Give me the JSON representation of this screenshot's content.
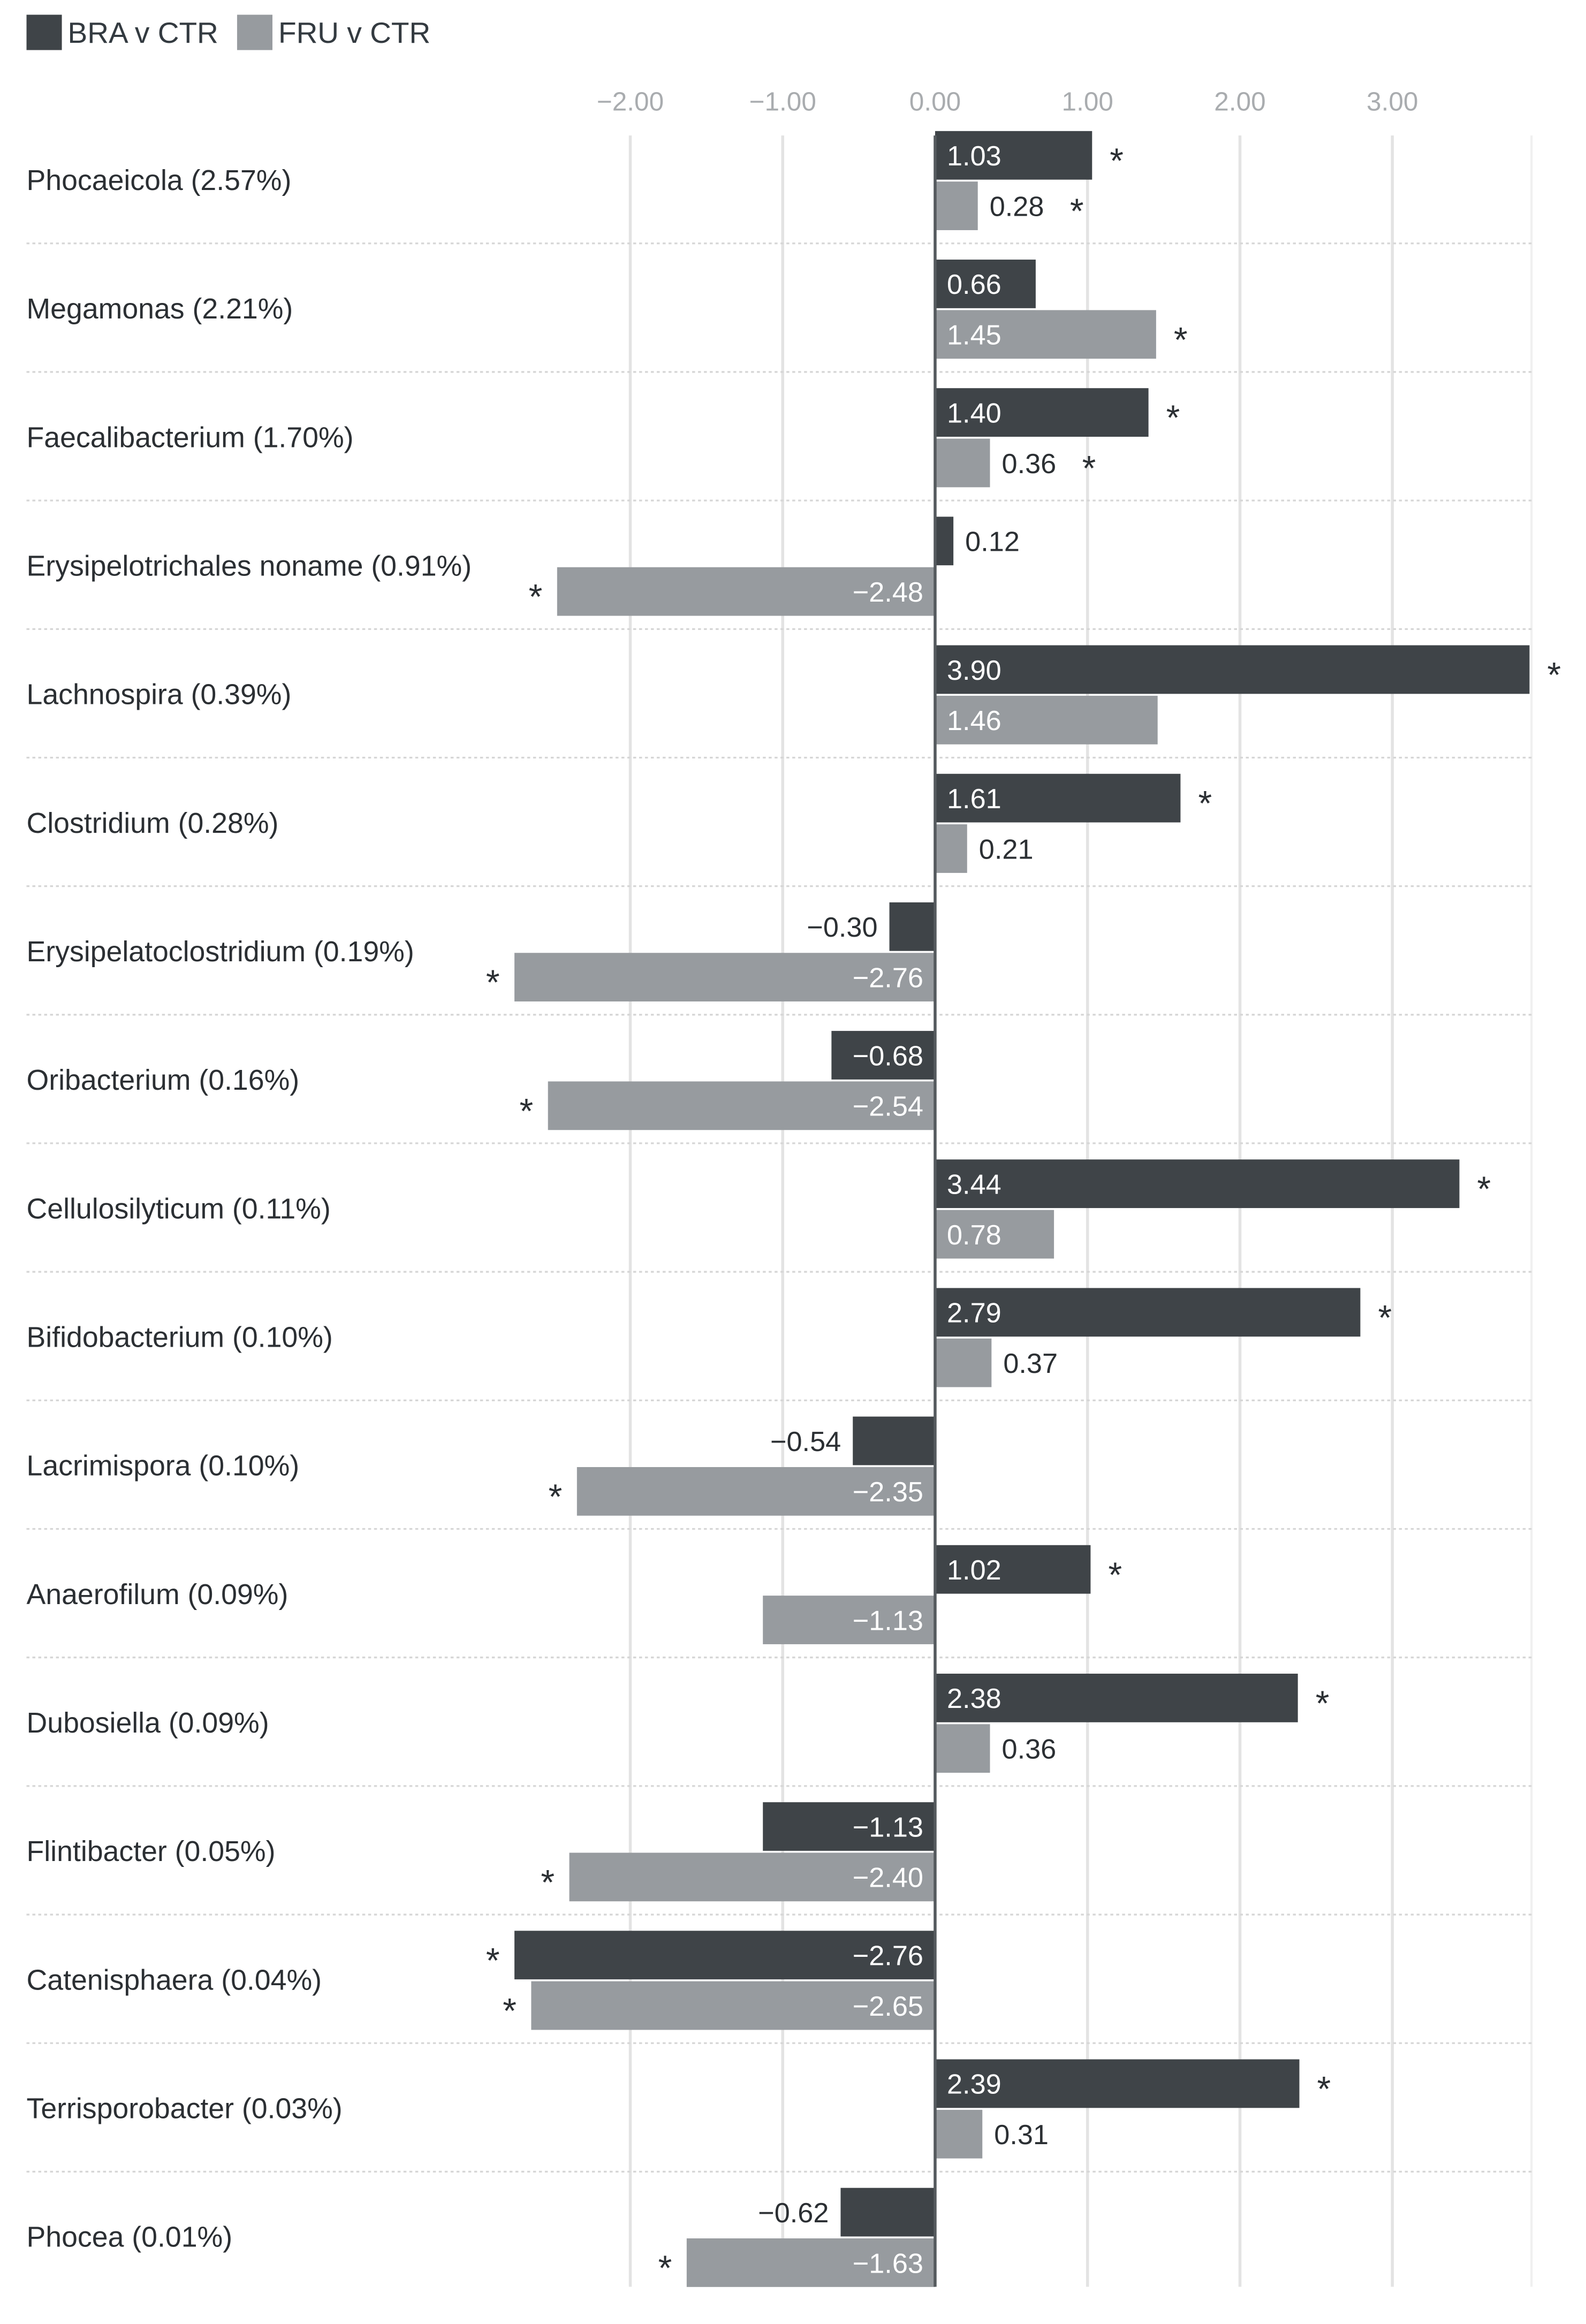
{
  "chart_data": {
    "type": "bar",
    "orientation": "horizontal",
    "legend": {
      "placement": "top-left",
      "items": [
        {
          "name": "BRA v CTR",
          "color": "#3f4448"
        },
        {
          "name": "FRU v CTR",
          "color": "#979b9f"
        }
      ]
    },
    "x_ticks": [
      "−2.00",
      "−1.00",
      "0.00",
      "1.00",
      "2.00",
      "3.00"
    ],
    "x_tick_values": [
      -2,
      -1,
      0,
      1,
      2,
      3
    ],
    "xlim": [
      -2.45,
      3.95
    ],
    "grid": true,
    "significance_marker": "*",
    "categories": [
      "Phocaeicola (2.57%)",
      "Megamonas (2.21%)",
      "Faecalibacterium (1.70%)",
      "Erysipelotrichales noname (0.91%)",
      "Lachnospira (0.39%)",
      "Clostridium (0.28%)",
      "Erysipelatoclostridium (0.19%)",
      "Oribacterium (0.16%)",
      "Cellulosilyticum (0.11%)",
      "Bifidobacterium (0.10%)",
      "Lacrimispora (0.10%)",
      "Anaerofilum (0.09%)",
      "Dubosiella (0.09%)",
      "Flintibacter (0.05%)",
      "Catenisphaera (0.04%)",
      "Terrisporobacter (0.03%)",
      "Phocea (0.01%)"
    ],
    "series": [
      {
        "name": "BRA v CTR",
        "color": "#3f4448",
        "values": [
          1.03,
          0.66,
          1.4,
          0.12,
          3.9,
          1.61,
          -0.3,
          -0.68,
          3.44,
          2.79,
          -0.54,
          1.02,
          2.38,
          -1.13,
          -2.76,
          2.39,
          -0.62
        ],
        "labels": [
          "1.03",
          "0.66",
          "1.40",
          "0.12",
          "3.90",
          "1.61",
          "−0.30",
          "−0.68",
          "3.44",
          "2.79",
          "−0.54",
          "1.02",
          "2.38",
          "−1.13",
          "−2.76",
          "2.39",
          "−0.62"
        ],
        "significant": [
          true,
          false,
          true,
          false,
          true,
          true,
          false,
          false,
          true,
          true,
          false,
          true,
          true,
          false,
          true,
          true,
          false
        ]
      },
      {
        "name": "FRU v CTR",
        "color": "#979b9f",
        "values": [
          0.28,
          1.45,
          0.36,
          -2.48,
          1.46,
          0.21,
          -2.76,
          -2.54,
          0.78,
          0.37,
          -2.35,
          -1.13,
          0.36,
          -2.4,
          -2.65,
          0.31,
          -1.63
        ],
        "labels": [
          "0.28",
          "1.45",
          "0.36",
          "−2.48",
          "1.46",
          "0.21",
          "−2.76",
          "−2.54",
          "0.78",
          "0.37",
          "−2.35",
          "−1.13",
          "0.36",
          "−2.40",
          "−2.65",
          "0.31",
          "−1.63"
        ],
        "significant": [
          true,
          true,
          true,
          true,
          false,
          false,
          true,
          true,
          false,
          false,
          true,
          false,
          false,
          true,
          true,
          false,
          true
        ]
      }
    ]
  }
}
